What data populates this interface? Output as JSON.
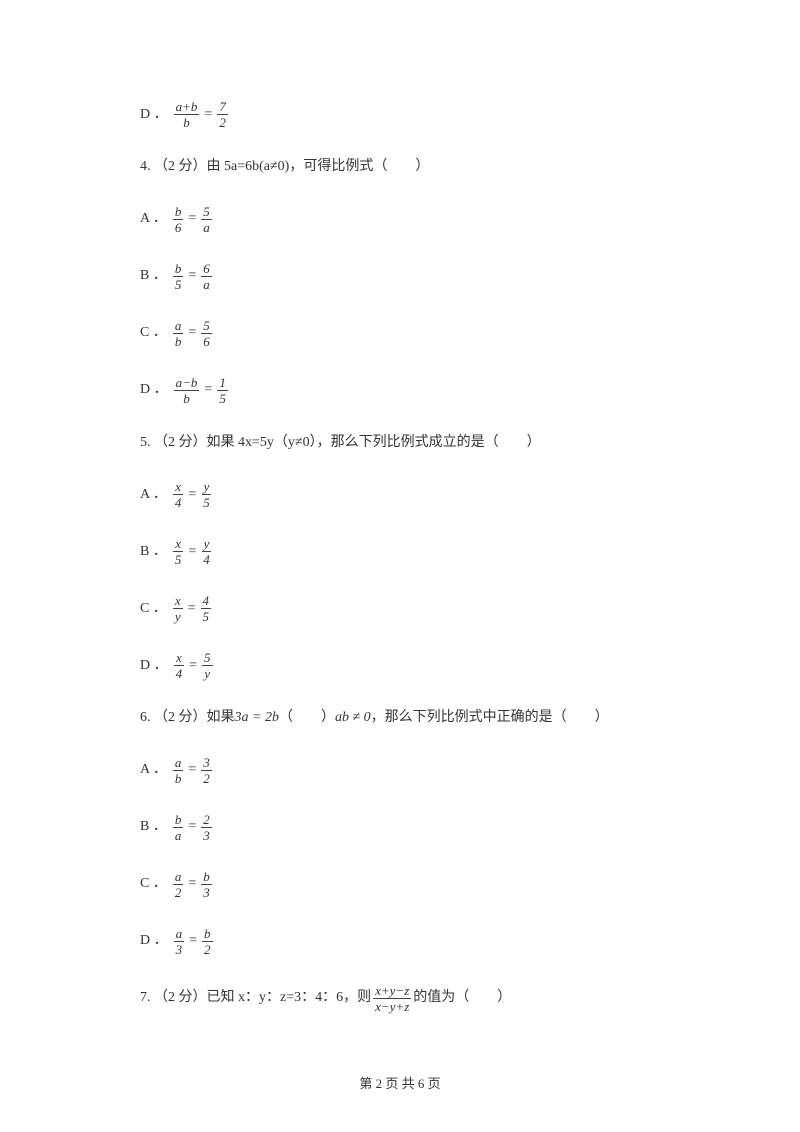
{
  "text_color": "#333333",
  "bg_color": "#ffffff",
  "font_family": "SimSun",
  "math_font": "Times New Roman",
  "font_size_pt": 14,
  "q3_optD": {
    "letter": "D ．",
    "frac1_num": "a+b",
    "frac1_den": "b",
    "op": "=",
    "frac2_num": "7",
    "frac2_den": "2"
  },
  "q4": {
    "stem": "4. （2 分）由 5a=6b(a≠0)，可得比例式（　　）",
    "A": {
      "letter": "A ．",
      "f1n": "b",
      "f1d": "6",
      "op": "=",
      "f2n": "5",
      "f2d": "a"
    },
    "B": {
      "letter": "B ．",
      "f1n": "b",
      "f1d": "5",
      "op": "=",
      "f2n": "6",
      "f2d": "a"
    },
    "C": {
      "letter": "C ．",
      "f1n": "a",
      "f1d": "b",
      "op": "=",
      "f2n": "5",
      "f2d": "6"
    },
    "D": {
      "letter": "D ．",
      "f1n": "a−b",
      "f1d": "b",
      "op": "=",
      "f2n": "1",
      "f2d": "5"
    }
  },
  "q5": {
    "stem": "5. （2 分）如果 4x=5y（y≠0），那么下列比例式成立的是（　　）",
    "A": {
      "letter": "A ．",
      "f1n": "x",
      "f1d": "4",
      "op": "=",
      "f2n": "y",
      "f2d": "5"
    },
    "B": {
      "letter": "B ．",
      "f1n": "x",
      "f1d": "5",
      "op": "=",
      "f2n": "y",
      "f2d": "4"
    },
    "C": {
      "letter": "C ．",
      "f1n": "x",
      "f1d": "y",
      "op": "=",
      "f2n": "4",
      "f2d": "5"
    },
    "D": {
      "letter": "D ．",
      "f1n": "x",
      "f1d": "4",
      "op": "=",
      "f2n": "5",
      "f2d": "y"
    }
  },
  "q6": {
    "stem_p1": "6. （2 分）如果 ",
    "stem_eq1": "3a = 2b",
    "stem_p2": " （　　） ",
    "stem_eq2": "ab ≠ 0",
    "stem_p3": "，那么下列比例式中正确的是（　　）",
    "A": {
      "letter": "A ．",
      "f1n": "a",
      "f1d": "b",
      "op": "=",
      "f2n": "3",
      "f2d": "2"
    },
    "B": {
      "letter": "B ．",
      "f1n": "b",
      "f1d": "a",
      "op": "=",
      "f2n": "2",
      "f2d": "3"
    },
    "C": {
      "letter": "C ．",
      "f1n": "a",
      "f1d": "2",
      "op": "=",
      "f2n": "b",
      "f2d": "3"
    },
    "D": {
      "letter": "D ．",
      "f1n": "a",
      "f1d": "3",
      "op": "=",
      "f2n": "b",
      "f2d": "2"
    }
  },
  "q7": {
    "stem_p1": "7. （2 分）已知 x：y：z=3：4：6，则 ",
    "frac_num": "x+y−z",
    "frac_den": "x−y+z",
    "stem_p2": " 的值为（　　）"
  },
  "footer": "第 2 页 共 6 页"
}
